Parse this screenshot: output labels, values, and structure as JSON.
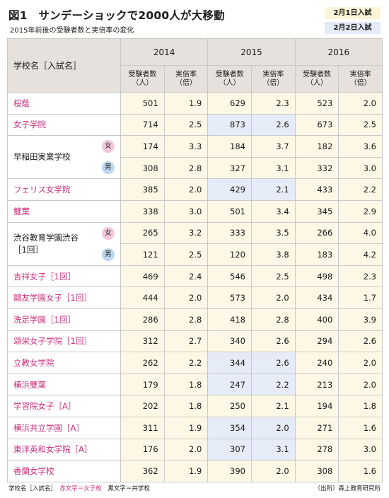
{
  "header": {
    "title": "図1　サンデーショックで2000人が大移動",
    "subtitle": "2015年前後の受験者数と実倍率の変化",
    "legend_feb1": "2月1日入試",
    "legend_feb2": "2月2日入試"
  },
  "columns": {
    "school": "学校名［入試名］",
    "years": [
      "2014",
      "2015",
      "2016"
    ],
    "applicants": "受験者数\n（人）",
    "ratio": "実倍率\n（倍）"
  },
  "rows": [
    {
      "name": "桜蔭",
      "type": "girls",
      "values": [
        501,
        1.9,
        629,
        2.3,
        523,
        2.0
      ],
      "feb2_2015": false
    },
    {
      "name": "女子学院",
      "type": "girls",
      "values": [
        714,
        2.5,
        873,
        2.6,
        673,
        2.5
      ],
      "feb2_2015": true
    },
    {
      "name": "早稲田実業学校",
      "type": "coed-split",
      "gender": "女",
      "values": [
        174,
        3.3,
        184,
        3.7,
        182,
        3.6
      ],
      "feb2_2015": false
    },
    {
      "gender": "男",
      "type": "coed-split-cont",
      "values": [
        308,
        2.8,
        327,
        3.1,
        332,
        3.0
      ],
      "feb2_2015": false
    },
    {
      "name": "フェリス女学院",
      "type": "girls",
      "values": [
        385,
        2.0,
        429,
        2.1,
        433,
        2.2
      ],
      "feb2_2015": true
    },
    {
      "name": "雙葉",
      "type": "girls",
      "values": [
        338,
        3.0,
        501,
        3.4,
        345,
        2.9
      ],
      "feb2_2015": false
    },
    {
      "name": "渋谷教育学園渋谷\n［1回］",
      "type": "coed-split",
      "gender": "女",
      "values": [
        265,
        3.2,
        333,
        3.5,
        266,
        4.0
      ],
      "feb2_2015": false
    },
    {
      "gender": "男",
      "type": "coed-split-cont",
      "values": [
        121,
        2.5,
        120,
        3.8,
        183,
        4.2
      ],
      "feb2_2015": false
    },
    {
      "name": "吉祥女子［1回］",
      "type": "girls",
      "values": [
        469,
        2.4,
        546,
        2.5,
        498,
        2.3
      ],
      "feb2_2015": false
    },
    {
      "name": "鷗友学園女子［1回］",
      "type": "girls",
      "values": [
        444,
        2.0,
        573,
        2.0,
        434,
        1.7
      ],
      "feb2_2015": false
    },
    {
      "name": "洗足学園［1回］",
      "type": "girls",
      "values": [
        286,
        2.8,
        418,
        2.8,
        400,
        3.9
      ],
      "feb2_2015": false
    },
    {
      "name": "頌栄女子学院［1回］",
      "type": "girls",
      "values": [
        312,
        2.7,
        340,
        2.6,
        294,
        2.6
      ],
      "feb2_2015": false
    },
    {
      "name": "立教女学院",
      "type": "girls",
      "values": [
        262,
        2.2,
        344,
        2.6,
        240,
        2.0
      ],
      "feb2_2015": true
    },
    {
      "name": "横浜雙葉",
      "type": "girls",
      "values": [
        179,
        1.8,
        247,
        2.2,
        213,
        2.0
      ],
      "feb2_2015": true
    },
    {
      "name": "学習院女子［A］",
      "type": "girls",
      "values": [
        202,
        1.8,
        250,
        2.1,
        194,
        1.8
      ],
      "feb2_2015": false
    },
    {
      "name": "横浜共立学園［A］",
      "type": "girls",
      "values": [
        311,
        1.9,
        354,
        2.0,
        271,
        1.6
      ],
      "feb2_2015": true
    },
    {
      "name": "東洋英和女学院［A］",
      "type": "girls",
      "values": [
        176,
        2.0,
        307,
        3.1,
        278,
        3.0
      ],
      "feb2_2015": true
    },
    {
      "name": "香蘭女学校",
      "type": "girls",
      "values": [
        362,
        1.9,
        390,
        2.0,
        308,
        1.6
      ],
      "feb2_2015": false
    }
  ],
  "footer": {
    "legend_prefix": "学校名［入試名］",
    "legend_girls": "赤文字＝女子校",
    "legend_coed": "黒文字＝共学校",
    "source": "（出所）森上教育研究所"
  },
  "colors": {
    "girls_text": "#c8307a",
    "feb1_fill": "#fdf8e6",
    "feb2_fill": "#e6ebf8",
    "header_fill": "#e6e1dc"
  }
}
